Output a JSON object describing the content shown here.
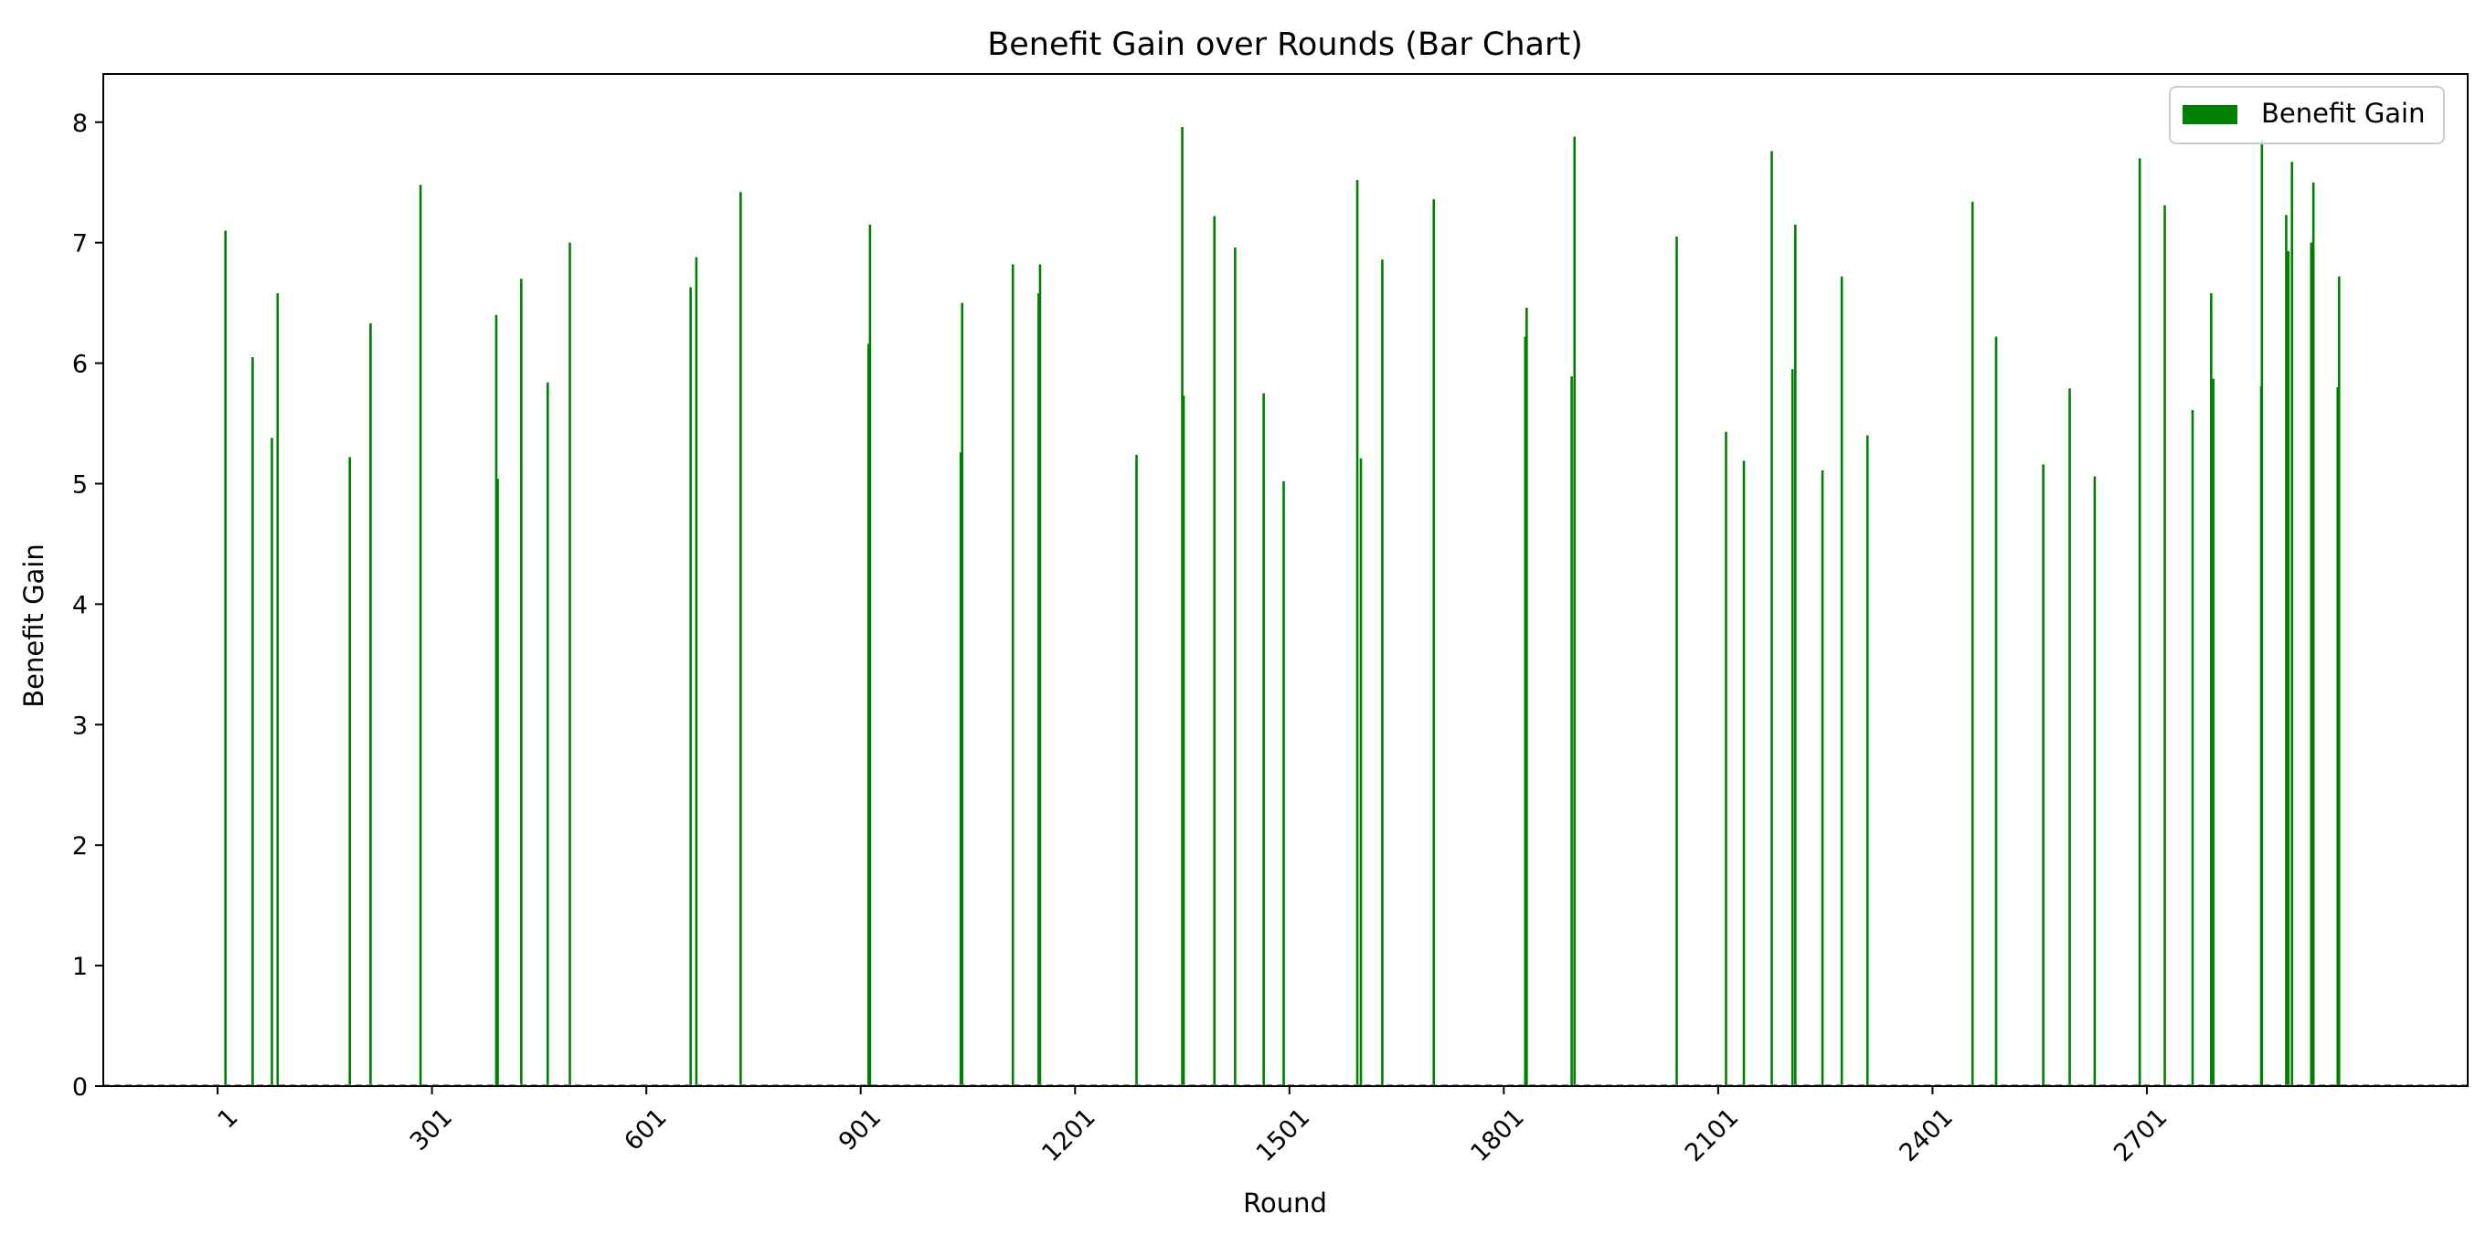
{
  "chart_data": {
    "type": "bar",
    "title": "Benefit Gain over Rounds (Bar Chart)",
    "xlabel": "Round",
    "ylabel": "Benefit Gain",
    "xlim": [
      -159,
      3150
    ],
    "ylim": [
      0,
      8.4
    ],
    "xticks": [
      1,
      301,
      601,
      901,
      1201,
      1501,
      1801,
      2101,
      2401,
      2701
    ],
    "xtick_labels": [
      "1",
      "301",
      "601",
      "901",
      "1201",
      "1501",
      "1801",
      "2101",
      "2401",
      "2701"
    ],
    "yticks": [
      0,
      1,
      2,
      3,
      4,
      5,
      6,
      7,
      8
    ],
    "ytick_labels": [
      "0",
      "1",
      "2",
      "3",
      "4",
      "5",
      "6",
      "7",
      "8"
    ],
    "grid": false,
    "legend": {
      "position": "top-right",
      "entries": [
        "Benefit Gain"
      ]
    },
    "bar_color": "#008000",
    "series": [
      {
        "name": "Benefit Gain",
        "x": [
          12,
          50,
          77,
          85,
          186,
          215,
          285,
          391,
          393,
          426,
          463,
          494,
          663,
          671,
          733,
          912,
          914,
          1041,
          1043,
          1114,
          1150,
          1152,
          1287,
          1351,
          1353,
          1396,
          1425,
          1465,
          1493,
          1596,
          1601,
          1631,
          1703,
          1831,
          1833,
          1896,
          1900,
          2043,
          2112,
          2137,
          2176,
          2205,
          2209,
          2247,
          2274,
          2310,
          2457,
          2490,
          2556,
          2593,
          2628,
          2691,
          2726,
          2765,
          2791,
          2794,
          2861,
          2862,
          2896,
          2899,
          2904,
          2931,
          2934,
          2968,
          2970
        ],
        "values": [
          7.1,
          6.05,
          5.38,
          6.58,
          5.22,
          6.33,
          7.48,
          6.4,
          5.04,
          6.7,
          5.84,
          7.0,
          6.63,
          6.88,
          7.42,
          6.16,
          7.15,
          5.26,
          6.5,
          6.82,
          6.58,
          6.82,
          5.24,
          7.96,
          5.73,
          7.22,
          6.96,
          5.75,
          5.02,
          7.52,
          5.21,
          6.86,
          7.36,
          6.22,
          6.46,
          5.89,
          7.88,
          7.05,
          5.43,
          5.19,
          7.76,
          5.95,
          7.15,
          5.11,
          6.72,
          5.4,
          7.34,
          6.22,
          5.16,
          5.79,
          5.06,
          7.7,
          7.31,
          5.61,
          6.58,
          5.87,
          5.81,
          7.85,
          7.23,
          6.93,
          7.67,
          7.0,
          7.5,
          5.8,
          6.72
        ]
      }
    ]
  }
}
